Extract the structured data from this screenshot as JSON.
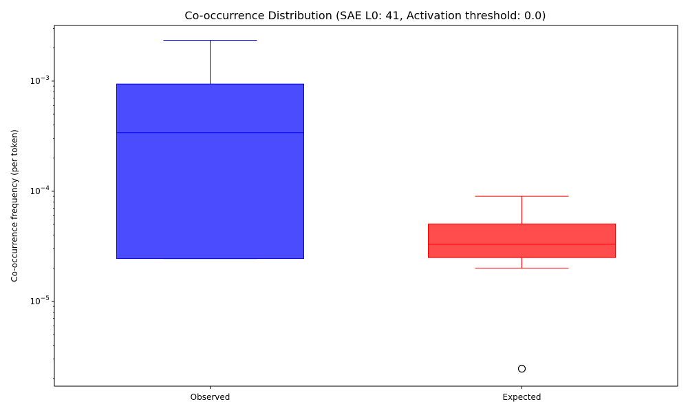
{
  "chart_data": {
    "type": "box",
    "title": "Co-occurrence Distribution (SAE L0: 41, Activation threshold: 0.0)",
    "xlabel": "",
    "ylabel": "Co-occurrence frequency (per token)",
    "yscale": "log",
    "ylim": [
      1.7e-06,
      0.0032
    ],
    "yticks": [
      {
        "value": 1e-05,
        "base": "10",
        "exp": "−5"
      },
      {
        "value": 0.0001,
        "base": "10",
        "exp": "−4"
      },
      {
        "value": 0.001,
        "base": "10",
        "exp": "−3"
      }
    ],
    "categories": [
      "Observed",
      "Expected"
    ],
    "boxes": [
      {
        "name": "Observed",
        "whislo": 2.45e-05,
        "q1": 2.45e-05,
        "med": 0.00034,
        "q3": 0.00094,
        "whishi": 0.00235,
        "fliers": [],
        "color": "#0000ff",
        "fill": "#4c4cff"
      },
      {
        "name": "Expected",
        "whislo": 2e-05,
        "q1": 2.5e-05,
        "med": 3.3e-05,
        "q3": 5.05e-05,
        "whishi": 9e-05,
        "fliers": [
          2.45e-06
        ],
        "color": "#ff0000",
        "fill": "#ff4c4c"
      }
    ],
    "grid": false
  }
}
